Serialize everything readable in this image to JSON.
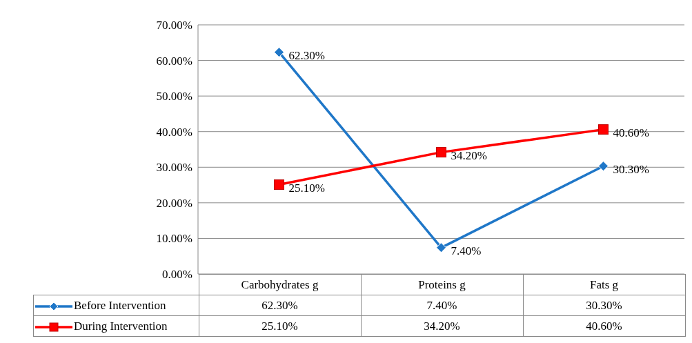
{
  "chart_data": {
    "type": "line",
    "categories": [
      "Carbohydrates g",
      "Proteins g",
      "Fats g"
    ],
    "series": [
      {
        "name": "Before Intervention",
        "color": "#1f77c8",
        "marker": "diamond",
        "values": [
          62.3,
          7.4,
          30.3
        ],
        "value_labels": [
          "62.30%",
          "7.40%",
          "30.30%"
        ]
      },
      {
        "name": "During Intervention",
        "color": "#ff0000",
        "marker": "square",
        "values": [
          25.1,
          34.2,
          40.6
        ],
        "value_labels": [
          "25.10%",
          "34.20%",
          "40.60%"
        ]
      }
    ],
    "ylim": [
      0,
      70
    ],
    "yticks": [
      {
        "value": 0,
        "label": "0.00%"
      },
      {
        "value": 10,
        "label": "10.00%"
      },
      {
        "value": 20,
        "label": "20.00%"
      },
      {
        "value": 30,
        "label": "30.00%"
      },
      {
        "value": 40,
        "label": "40.00%"
      },
      {
        "value": 50,
        "label": "50.00%"
      },
      {
        "value": 60,
        "label": "60.00%"
      },
      {
        "value": 70,
        "label": "70.00%"
      }
    ],
    "grid": "y",
    "legend": "bottom",
    "line_style": "solid"
  }
}
